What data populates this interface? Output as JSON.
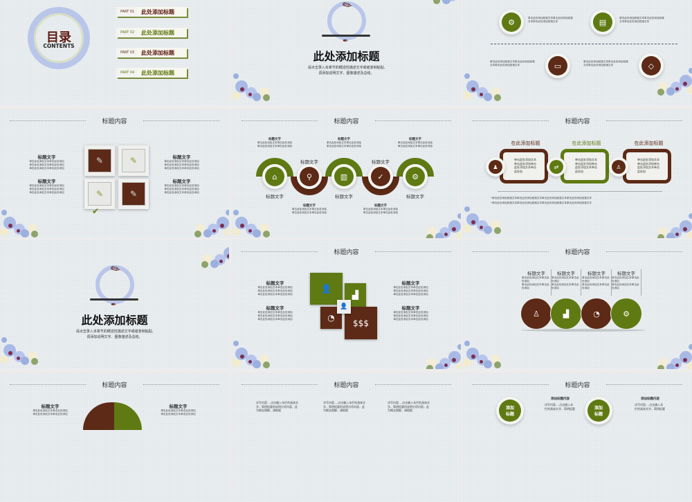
{
  "colors": {
    "green": "#5f7a12",
    "brown": "#5c2a16",
    "background": "#e6ebee"
  },
  "placeholder_short": "单击此处添加文本单击此处添加",
  "placeholder_mid": "单击此处添加段落文本单击此处添加段落",
  "placeholder_mid2": "文本单击此处添加段落文本",
  "placeholder_long": "•单击此处添加段落文本单击此处添加段落文本单击此处添加段落文本单击此处添加段落文本",
  "slide1": {
    "title": "目录",
    "subtitle": "CONTENTS",
    "parts": [
      {
        "num": "PART 01",
        "label": "此处添加标题"
      },
      {
        "num": "PART 02",
        "label": "此处添加标题"
      },
      {
        "num": "PART 03",
        "label": "此处添加标题"
      },
      {
        "num": "PART 04",
        "label": "此处添加标题"
      }
    ]
  },
  "section": {
    "title": "此处添加标题",
    "desc1": "请点击录入本章节的概括性描述文字或者复制粘贴,",
    "desc2": "调添加说明文字、图像描述及总结。"
  },
  "header": "标题内容",
  "item_title": "标题文字",
  "slide3": {
    "icons": [
      "gears-icon",
      "document-icon",
      "monitor-icon",
      "ticket-icon"
    ]
  },
  "slide5": {
    "icons": [
      "home-icon",
      "search-icon",
      "chart-icon",
      "check-icon",
      "gear-icon"
    ]
  },
  "slide6": {
    "headings": [
      "在此添加标题",
      "在此添加标题",
      "在此添加标题"
    ],
    "box_text": "单击此处添加文本单击此处添加单击此处添加文本单击此处加"
  },
  "slide9": {
    "icons": [
      "person-icon",
      "growth-chart-icon",
      "pie-chart-icon",
      "gear-icon"
    ]
  },
  "slide11": {
    "text": "详写内容....点击输入本栏的具体文字，简明扼要的说明分项内容，此为概念图解，请根据"
  },
  "slide12": {
    "circle_label1": "添加",
    "circle_label2": "标题",
    "heading": "添加标题内容",
    "text": "详写内容....点击输入本栏的具体文字，简明扼要"
  }
}
